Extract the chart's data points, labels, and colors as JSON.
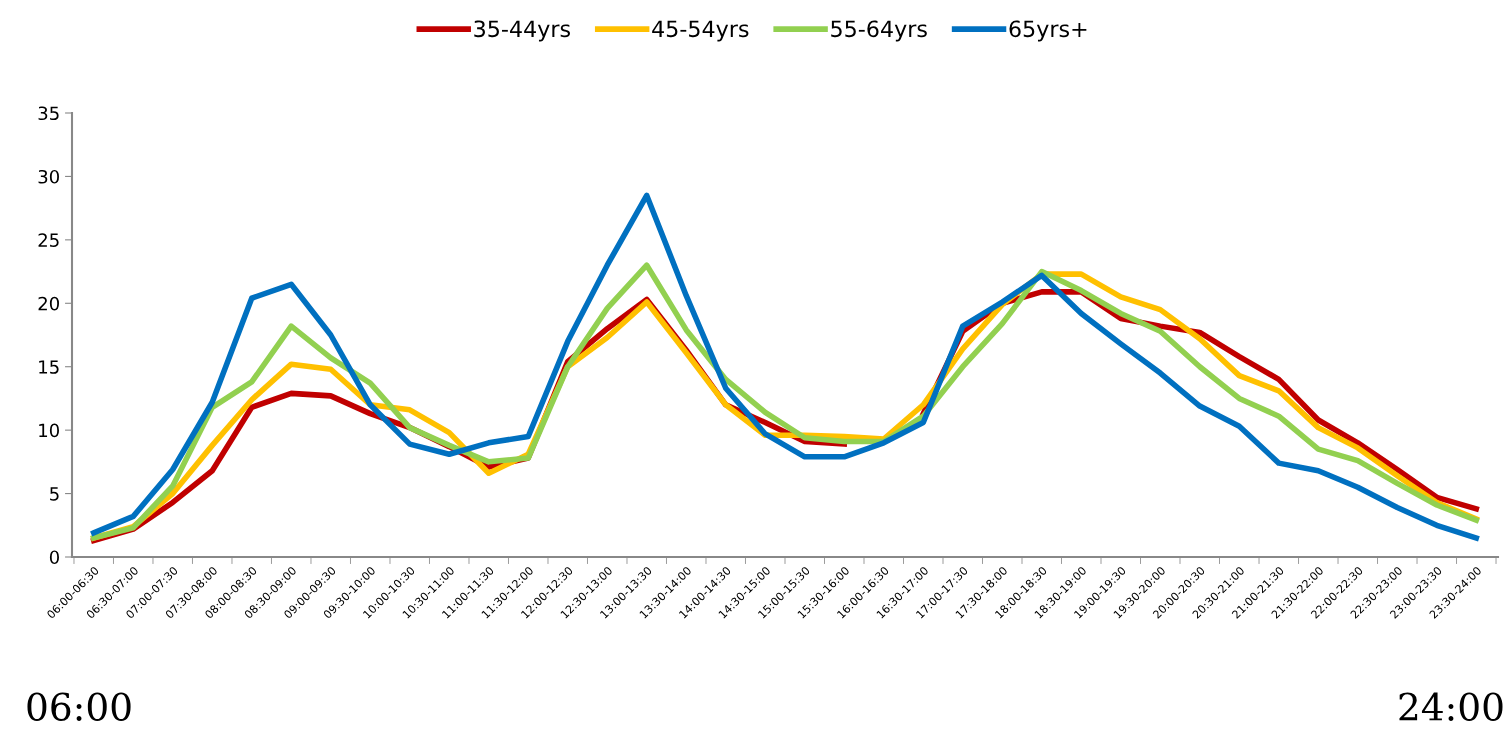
{
  "chart_data": {
    "type": "line",
    "categories": [
      "06:00-06:30",
      "06:30-07:00",
      "07:00-07:30",
      "07:30-08:00",
      "08:00-08:30",
      "08:30-09:00",
      "09:00-09:30",
      "09:30-10:00",
      "10:00-10:30",
      "10:30-11:00",
      "11:00-11:30",
      "11:30-12:00",
      "12:00-12:30",
      "12:30-13:00",
      "13:00-13:30",
      "13:30-14:00",
      "14:00-14:30",
      "14:30-15:00",
      "15:00-15:30",
      "15:30-16:00",
      "16:00-16:30",
      "16:30-17:00",
      "17:00-17:30",
      "17:30-18:00",
      "18:00-18:30",
      "18:30-19:00",
      "19:00-19:30",
      "19:30-20:00",
      "20:00-20:30",
      "20:30-21:00",
      "21:00-21:30",
      "21:30-22:00",
      "22:00-22:30",
      "22:30-23:00",
      "23:00-23:30",
      "23:30-24:00"
    ],
    "series": [
      {
        "name": "35-44yrs",
        "color": "#c00000",
        "values": [
          1.3,
          2.2,
          4.3,
          6.8,
          11.8,
          12.9,
          12.7,
          11.3,
          10.2,
          8.7,
          7.1,
          7.8,
          15.4,
          18.0,
          20.3,
          16.3,
          12.0,
          10.6,
          9.1,
          8.9,
          null,
          11.3,
          17.8,
          20.0,
          20.9,
          20.9,
          18.8,
          18.2,
          17.7,
          15.8,
          14.0,
          10.8,
          9.0,
          6.9,
          4.7,
          3.8
        ]
      },
      {
        "name": "45-54yrs",
        "color": "#ffc000",
        "values": [
          1.5,
          2.4,
          5.0,
          8.8,
          12.4,
          15.2,
          14.8,
          12.0,
          11.6,
          9.8,
          6.6,
          8.1,
          15.0,
          17.3,
          20.1,
          16.1,
          12.0,
          9.6,
          9.6,
          9.5,
          9.3,
          12.0,
          16.4,
          19.9,
          22.3,
          22.3,
          20.5,
          19.5,
          17.2,
          14.3,
          13.1,
          10.2,
          8.6,
          6.4,
          4.3,
          3.0
        ]
      },
      {
        "name": "55-64yrs",
        "color": "#92d050",
        "values": [
          1.5,
          2.3,
          5.6,
          11.8,
          13.8,
          18.2,
          15.7,
          13.7,
          10.2,
          8.8,
          7.5,
          7.8,
          15.0,
          19.6,
          23.0,
          17.9,
          14.0,
          11.4,
          9.4,
          9.1,
          9.1,
          11.1,
          15.0,
          18.4,
          22.5,
          21.0,
          19.2,
          17.8,
          15.0,
          12.5,
          11.1,
          8.5,
          7.6,
          5.8,
          4.1,
          2.9
        ]
      },
      {
        "name": "65yrs+",
        "color": "#0070c0",
        "values": [
          1.9,
          3.2,
          6.9,
          12.2,
          20.4,
          21.5,
          17.5,
          12.0,
          8.9,
          8.1,
          9.0,
          9.5,
          17.0,
          23.0,
          28.5,
          20.6,
          13.3,
          9.7,
          7.9,
          7.9,
          9.0,
          10.6,
          18.2,
          20.1,
          22.2,
          19.2,
          16.8,
          14.5,
          11.9,
          10.3,
          7.4,
          6.8,
          5.5,
          3.9,
          2.5,
          1.5
        ]
      }
    ],
    "ylim": [
      0,
      35
    ],
    "yticks": [
      0,
      5,
      10,
      15,
      20,
      25,
      30,
      35
    ],
    "grid": false,
    "legend": "top",
    "marker": "none",
    "line_style": "solid",
    "annotations": [
      "06:00",
      "24:00"
    ]
  }
}
